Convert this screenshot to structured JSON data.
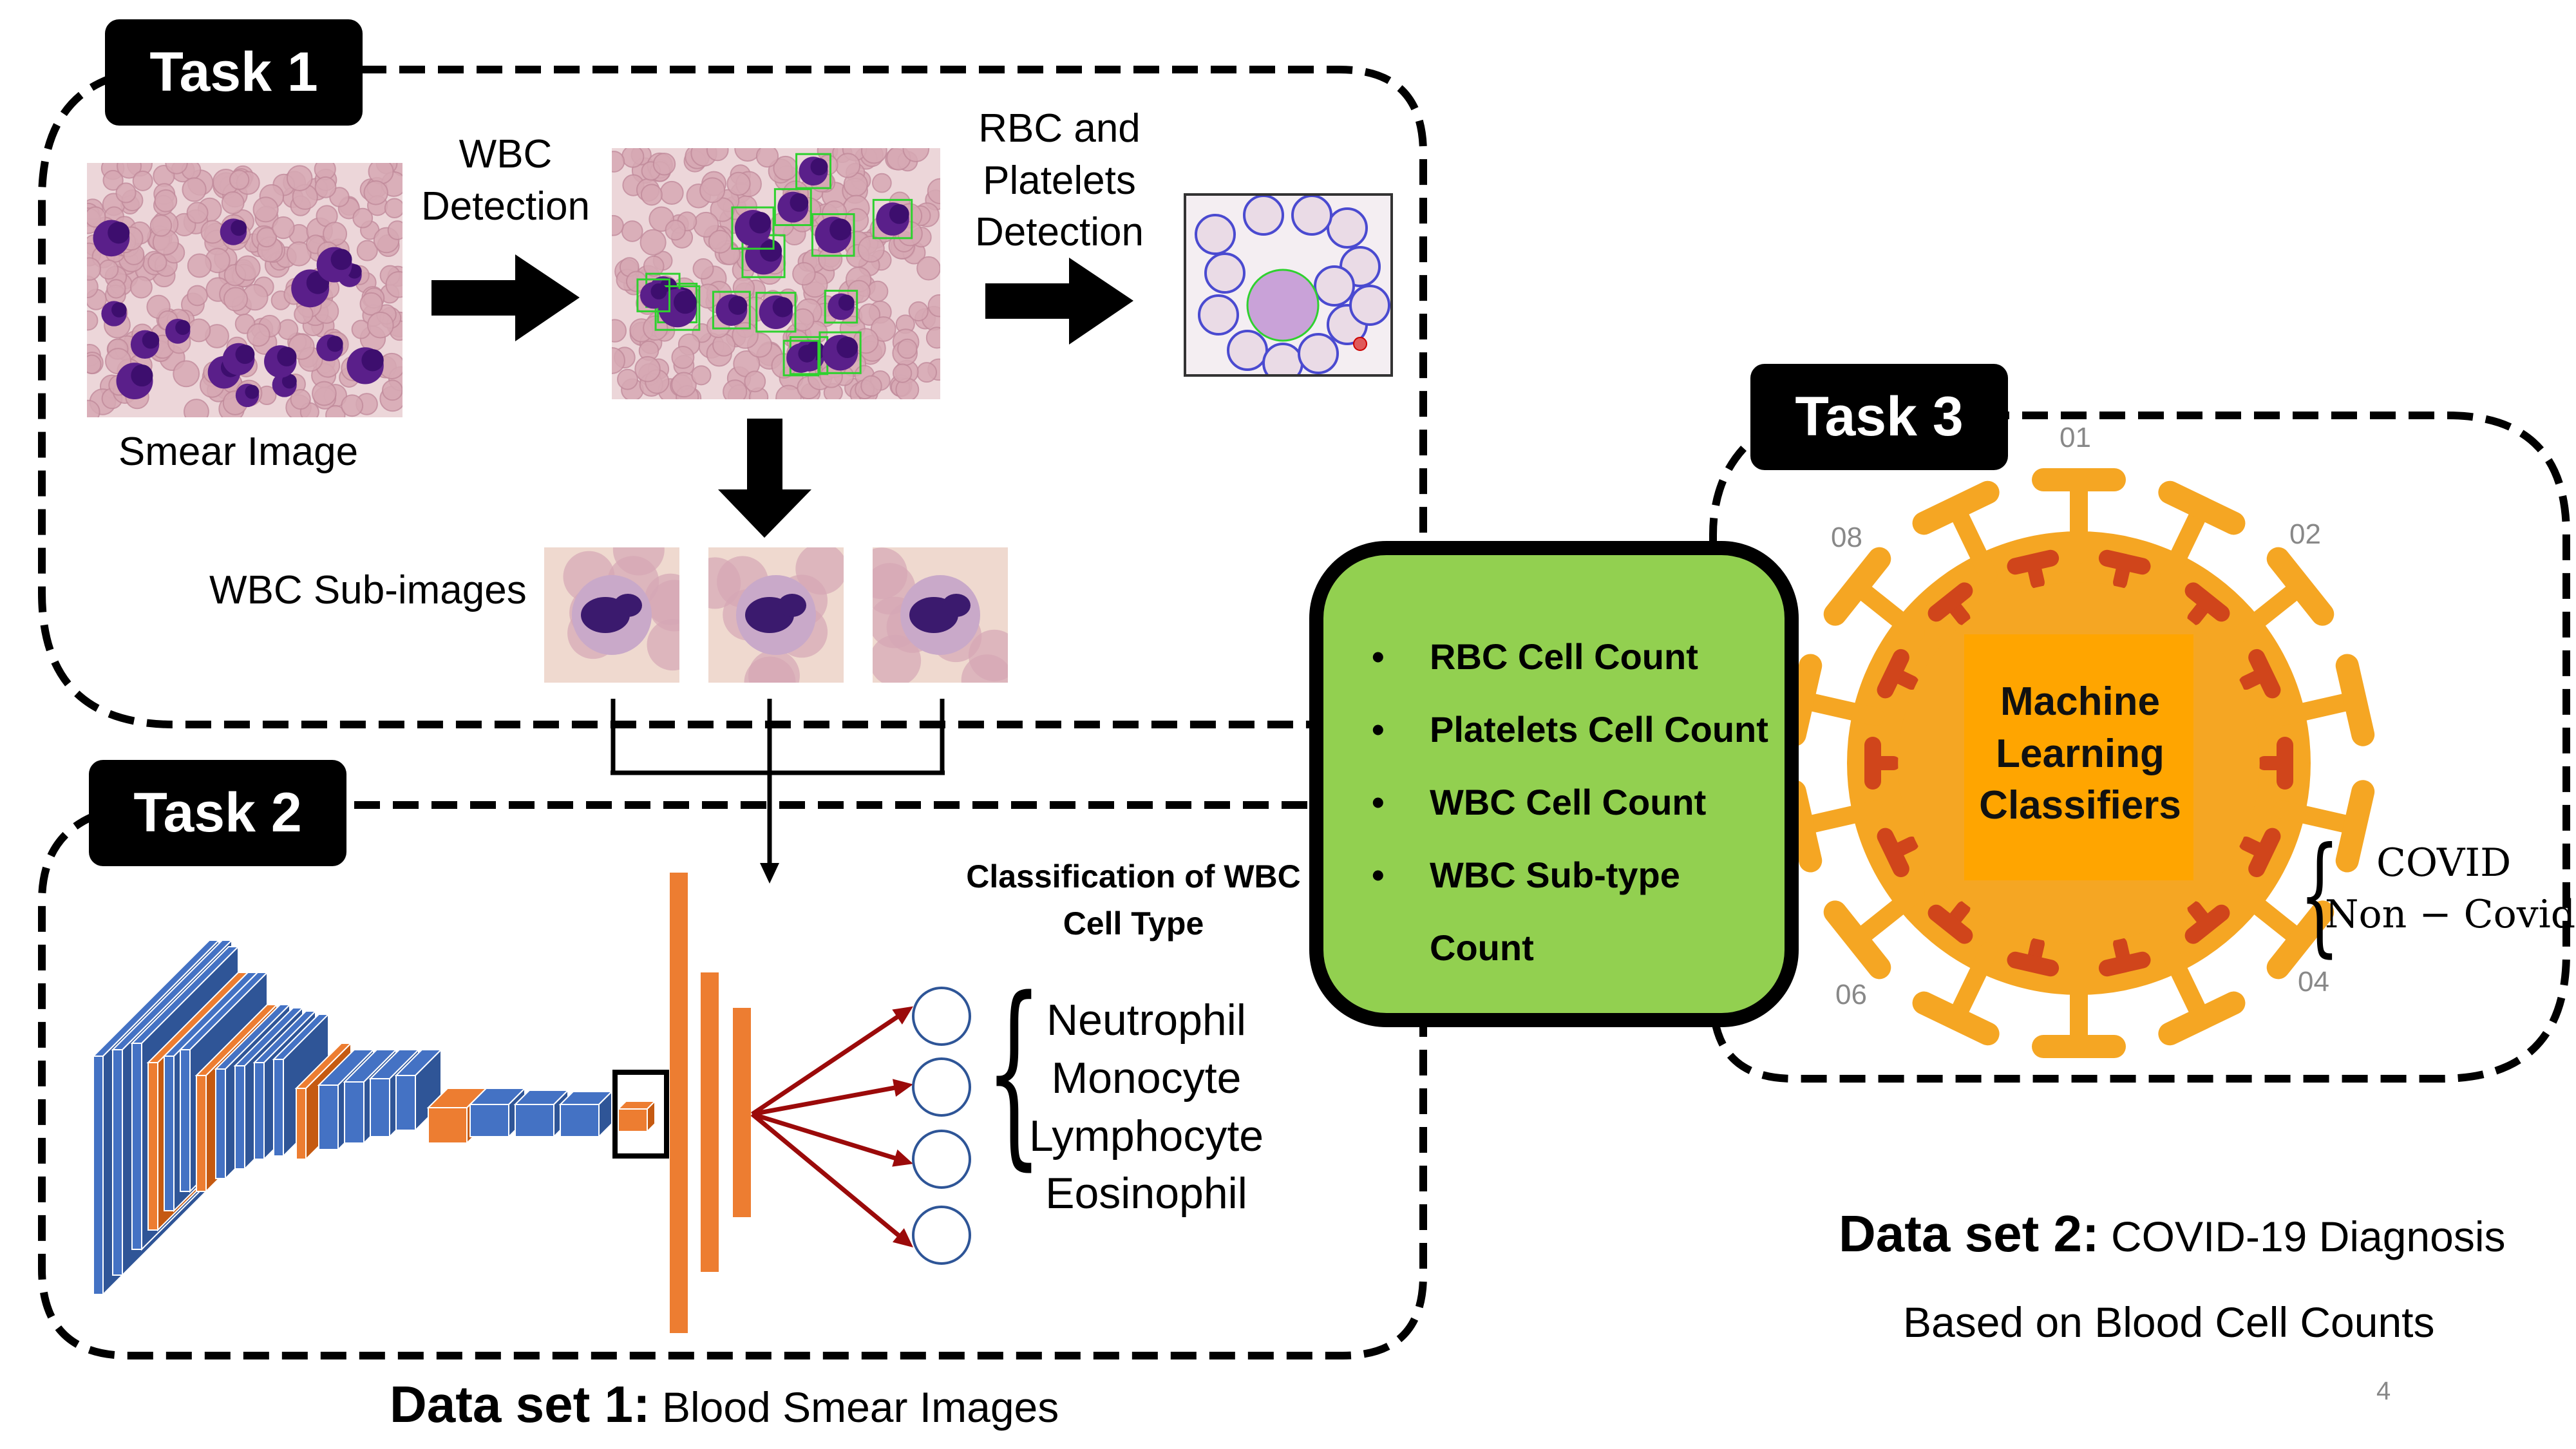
{
  "task1": {
    "label": "Task 1"
  },
  "task2": {
    "label": "Task 2"
  },
  "task3": {
    "label": "Task 3"
  },
  "smear_image_label": "Smear Image",
  "wbc_detection_label": "WBC Detection",
  "rbc_platelets_label": "RBC and Platelets Detection",
  "wbc_subimages_label": "WBC Sub-images",
  "classification_label": "Classification of WBC Cell Type",
  "wbc_types": [
    "Neutrophil",
    "Monocyte",
    "Lymphocyte",
    "Eosinophil"
  ],
  "cell_counts": [
    "RBC Cell Count",
    "Platelets Cell Count",
    "WBC Cell Count",
    "WBC Sub-type",
    "Count"
  ],
  "ml_label": "Machine Learning Classifiers",
  "outcomes": [
    "COVID",
    "Non − Covid"
  ],
  "virus_numbers": [
    "01",
    "02",
    "04",
    "06",
    "08"
  ],
  "dataset1": {
    "bold": "Data set 1:",
    "text": " Blood Smear Images"
  },
  "dataset2": {
    "bold": "Data set 2:",
    "text": " COVID-19 Diagnosis",
    "line2": "Based on Blood Cell Counts"
  },
  "page_number": "4",
  "colors": {
    "cnn_blue": "#4472c4",
    "cnn_orange": "#ed7d31",
    "green_box": "#92d050",
    "virus": "#f5a623",
    "virus_dark": "#d0451b",
    "arrow_red": "#9b0a0a"
  }
}
